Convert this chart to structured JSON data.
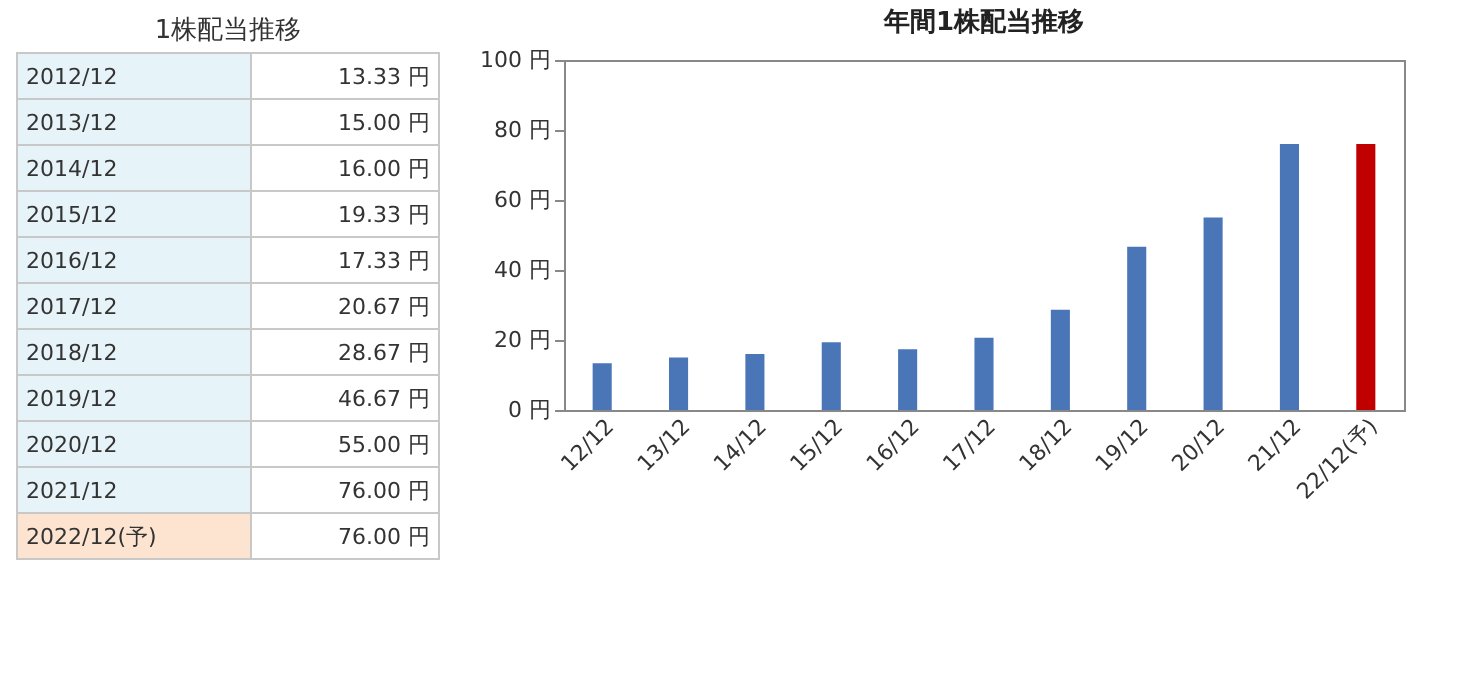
{
  "chart_data": [
    {
      "type": "other",
      "title": "1株配当推移",
      "annotations": [
        "2012/12",
        "13.33 円",
        "2013/12",
        "15.00 円",
        "2014/12",
        "16.00 円",
        "2015/12",
        "19.33 円",
        "2016/12",
        "17.33 円",
        "2017/12",
        "20.67 円",
        "2018/12",
        "28.67 円",
        "2019/12",
        "46.67 円",
        "2020/12",
        "55.00 円",
        "2021/12",
        "76.00 円",
        "2022/12(予)",
        "76.00 円"
      ]
    },
    {
      "type": "bar",
      "title": "年間1株配当推移",
      "categories": [
        "12/12",
        "13/12",
        "14/12",
        "15/12",
        "16/12",
        "17/12",
        "18/12",
        "19/12",
        "20/12",
        "21/12",
        "22/12(予)"
      ],
      "values": [
        13.33,
        15.0,
        16.0,
        19.33,
        17.33,
        20.67,
        28.67,
        46.67,
        55.0,
        76.0,
        76.0
      ],
      "colors": [
        "#4a76b8",
        "#4a76b8",
        "#4a76b8",
        "#4a76b8",
        "#4a76b8",
        "#4a76b8",
        "#4a76b8",
        "#4a76b8",
        "#4a76b8",
        "#4a76b8",
        "#c00000"
      ],
      "ylim": [
        0,
        100
      ],
      "yticks": [
        {
          "value": 0,
          "label": "0 円"
        },
        {
          "value": 20,
          "label": "20 円"
        },
        {
          "value": 40,
          "label": "40 円"
        },
        {
          "value": 60,
          "label": "60 円"
        },
        {
          "value": 80,
          "label": "80 円"
        },
        {
          "value": 100,
          "label": "100 円"
        }
      ],
      "grid": false
    }
  ]
}
